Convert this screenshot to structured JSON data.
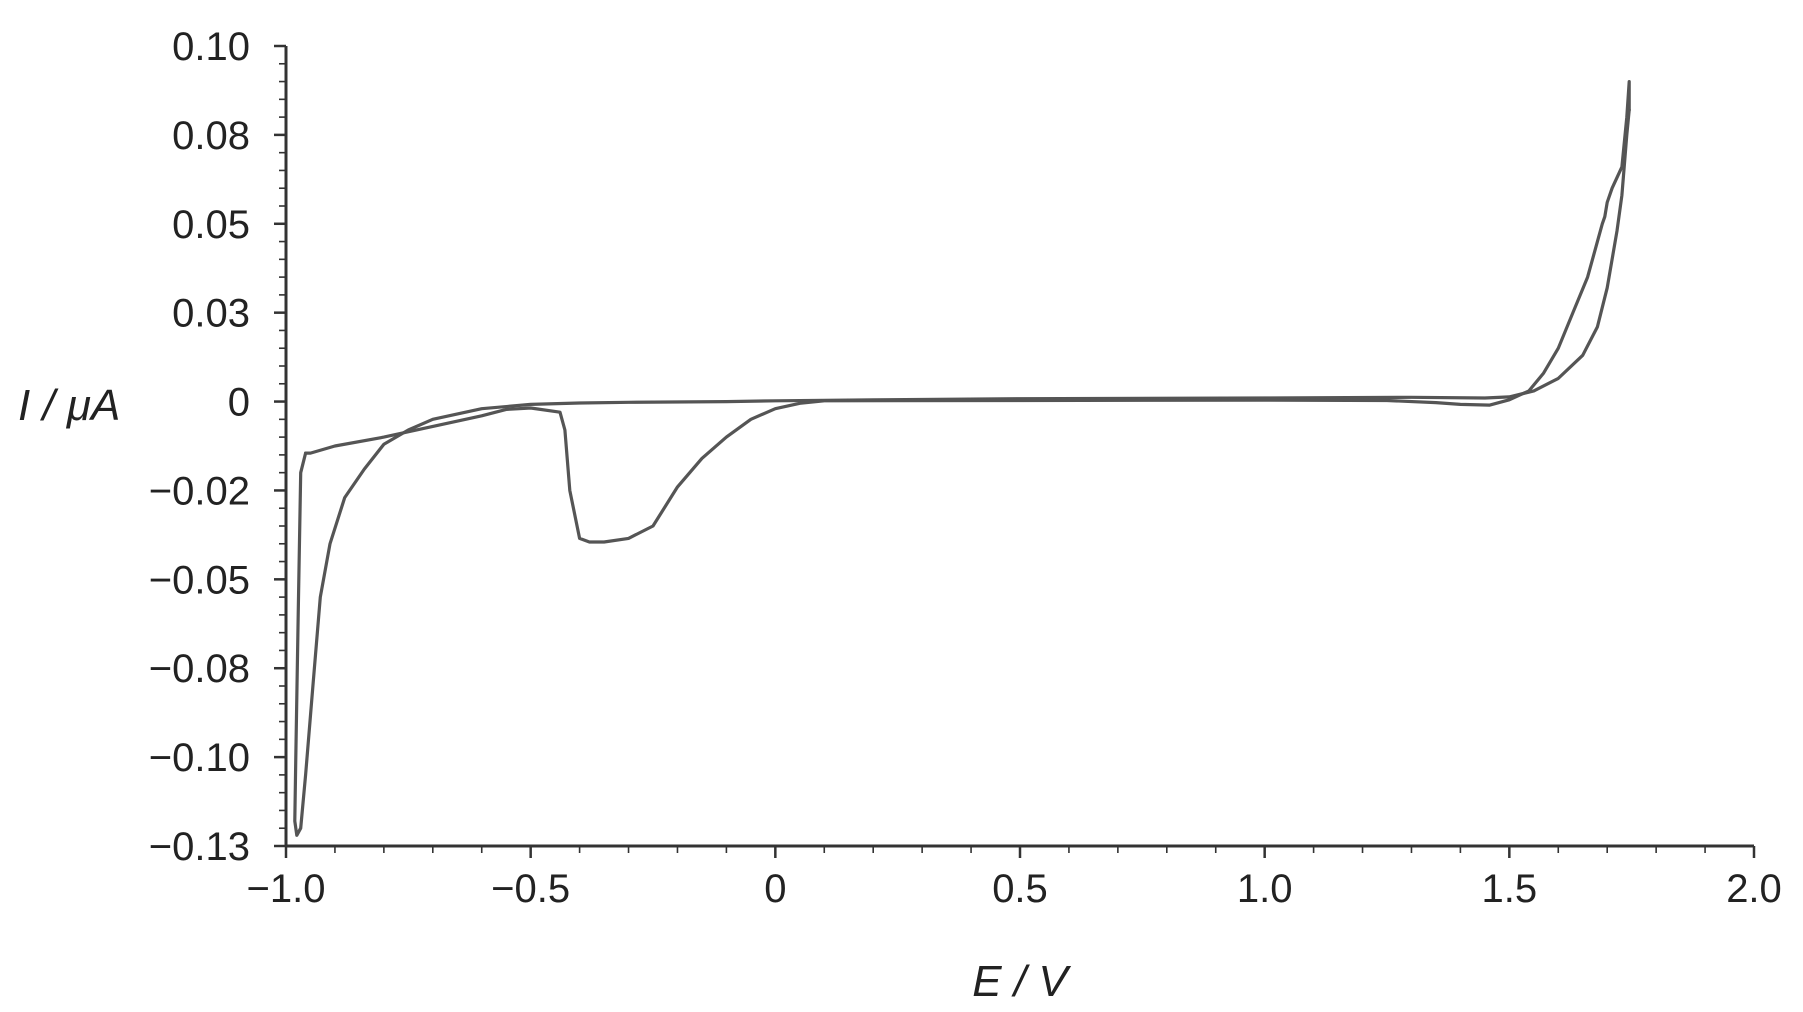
{
  "chart_data": {
    "type": "line",
    "title": "",
    "xlabel": {
      "symbol": "E",
      "unit": "V"
    },
    "ylabel": {
      "symbol": "I",
      "unit": "μA"
    },
    "xlim": [
      -1.0,
      2.0
    ],
    "ylim": [
      -0.125,
      0.1
    ],
    "x_ticks": [
      {
        "v": -1.0,
        "label": "−1.0"
      },
      {
        "v": -0.5,
        "label": "−0.5"
      },
      {
        "v": 0.0,
        "label": "0"
      },
      {
        "v": 0.5,
        "label": "0.5"
      },
      {
        "v": 1.0,
        "label": "1.0"
      },
      {
        "v": 1.5,
        "label": "1.5"
      },
      {
        "v": 2.0,
        "label": "2.0"
      }
    ],
    "y_ticks": [
      {
        "v": 0.1,
        "label": "0.10"
      },
      {
        "v": 0.075,
        "label": "0.08"
      },
      {
        "v": 0.05,
        "label": "0.05"
      },
      {
        "v": 0.025,
        "label": "0.03"
      },
      {
        "v": 0.0,
        "label": "0"
      },
      {
        "v": -0.025,
        "label": "−0.02"
      },
      {
        "v": -0.05,
        "label": "−0.05"
      },
      {
        "v": -0.075,
        "label": "−0.08"
      },
      {
        "v": -0.1,
        "label": "−0.10"
      },
      {
        "v": -0.125,
        "label": "−0.13"
      }
    ],
    "grid": false,
    "legend": "none",
    "line_color": "#555555",
    "series": [
      {
        "points": [
          [
            -0.96,
            -0.0145
          ],
          [
            -0.97,
            -0.02
          ],
          [
            -0.975,
            -0.06
          ],
          [
            -0.98,
            -0.1
          ],
          [
            -0.982,
            -0.118
          ],
          [
            -0.978,
            -0.122
          ],
          [
            -0.97,
            -0.12
          ],
          [
            -0.96,
            -0.105
          ],
          [
            -0.945,
            -0.08
          ],
          [
            -0.93,
            -0.055
          ],
          [
            -0.91,
            -0.04
          ],
          [
            -0.88,
            -0.027
          ],
          [
            -0.84,
            -0.019
          ],
          [
            -0.8,
            -0.012
          ],
          [
            -0.75,
            -0.008
          ],
          [
            -0.7,
            -0.005
          ],
          [
            -0.6,
            -0.002
          ],
          [
            -0.5,
            -0.0008
          ],
          [
            -0.4,
            -0.0004
          ],
          [
            -0.3,
            -0.0002
          ],
          [
            -0.1,
            0.0
          ],
          [
            0.0,
            0.0002
          ],
          [
            0.2,
            0.0005
          ],
          [
            0.5,
            0.0008
          ],
          [
            1.0,
            0.001
          ],
          [
            1.3,
            0.0012
          ],
          [
            1.45,
            0.001
          ],
          [
            1.5,
            0.0013
          ],
          [
            1.55,
            0.003
          ],
          [
            1.6,
            0.0065
          ],
          [
            1.65,
            0.013
          ],
          [
            1.68,
            0.021
          ],
          [
            1.7,
            0.032
          ],
          [
            1.72,
            0.048
          ],
          [
            1.73,
            0.058
          ],
          [
            1.74,
            0.075
          ],
          [
            1.745,
            0.082
          ]
        ]
      },
      {
        "points": [
          [
            1.745,
            0.082
          ],
          [
            1.745,
            0.09
          ],
          [
            1.74,
            0.08
          ],
          [
            1.73,
            0.066
          ],
          [
            1.71,
            0.06
          ],
          [
            1.7,
            0.056
          ],
          [
            1.695,
            0.052
          ],
          [
            1.69,
            0.05
          ],
          [
            1.68,
            0.045
          ],
          [
            1.66,
            0.035
          ],
          [
            1.63,
            0.025
          ],
          [
            1.6,
            0.015
          ],
          [
            1.57,
            0.008
          ],
          [
            1.54,
            0.003
          ],
          [
            1.5,
            0.0005
          ],
          [
            1.46,
            -0.001
          ],
          [
            1.4,
            -0.0008
          ],
          [
            1.35,
            -0.0003
          ],
          [
            1.25,
            0.0003
          ],
          [
            1.0,
            0.0004
          ],
          [
            0.5,
            0.0003
          ],
          [
            0.1,
            0.0002
          ],
          [
            0.05,
            -0.0005
          ],
          [
            0.0,
            -0.002
          ],
          [
            -0.05,
            -0.005
          ],
          [
            -0.1,
            -0.01
          ],
          [
            -0.15,
            -0.016
          ],
          [
            -0.2,
            -0.024
          ],
          [
            -0.25,
            -0.035
          ],
          [
            -0.3,
            -0.0385
          ],
          [
            -0.35,
            -0.0395
          ],
          [
            -0.38,
            -0.0395
          ],
          [
            -0.4,
            -0.0385
          ],
          [
            -0.42,
            -0.025
          ],
          [
            -0.43,
            -0.008
          ],
          [
            -0.44,
            -0.003
          ],
          [
            -0.5,
            -0.0018
          ],
          [
            -0.55,
            -0.0022
          ],
          [
            -0.6,
            -0.004
          ],
          [
            -0.7,
            -0.007
          ],
          [
            -0.8,
            -0.01
          ],
          [
            -0.9,
            -0.0125
          ],
          [
            -0.95,
            -0.0145
          ],
          [
            -0.96,
            -0.0145
          ]
        ]
      }
    ]
  }
}
